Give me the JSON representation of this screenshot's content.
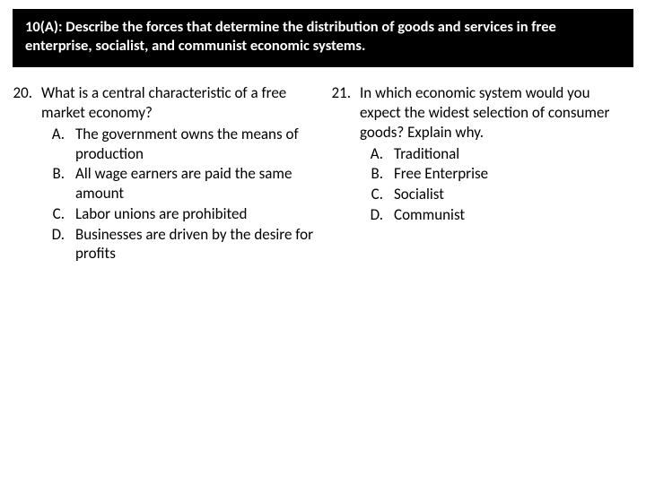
{
  "header": {
    "text": "10(A): Describe the forces that determine the distribution of goods and services in free enterprise, socialist, and communist economic systems."
  },
  "leftQuestion": {
    "number": "20.",
    "stem": "What is a central characteristic of a free market economy?",
    "options": [
      {
        "letter": "A.",
        "text": "The government owns the means of production"
      },
      {
        "letter": "B.",
        "text": "All wage earners are paid the same amount"
      },
      {
        "letter": "C.",
        "text": "Labor unions are prohibited"
      },
      {
        "letter": "D.",
        "text": "Businesses are driven by the desire for profits"
      }
    ]
  },
  "rightQuestion": {
    "number": "21.",
    "stem": "In which economic system would you expect the widest selection of consumer goods? Explain why.",
    "options": [
      {
        "letter": "A.",
        "text": "Traditional"
      },
      {
        "letter": "B.",
        "text": "Free Enterprise"
      },
      {
        "letter": "C.",
        "text": "Socialist"
      },
      {
        "letter": "D.",
        "text": "Communist"
      }
    ]
  }
}
